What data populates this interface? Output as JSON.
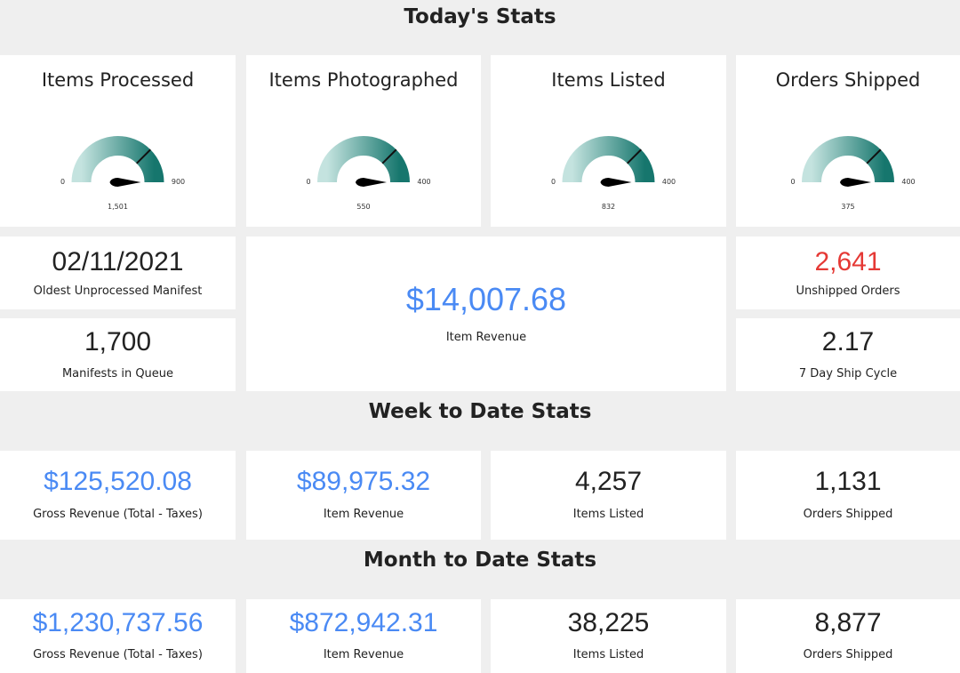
{
  "today": {
    "title": "Today's Stats",
    "gauges": [
      {
        "title": "Items Processed",
        "min": 0,
        "max": 900,
        "value": "1,501"
      },
      {
        "title": "Items Photographed",
        "min": 0,
        "max": 400,
        "value": "550"
      },
      {
        "title": "Items Listed",
        "min": 0,
        "max": 400,
        "value": "832"
      },
      {
        "title": "Orders Shipped",
        "min": 0,
        "max": 400,
        "value": "375"
      }
    ],
    "stats": [
      {
        "value": "02/11/2021",
        "label": "Oldest Unprocessed Manifest"
      },
      {
        "value": "1,700",
        "label": "Manifests in Queue"
      },
      {
        "value": "$14,007.68",
        "label": "Item Revenue"
      },
      {
        "value": "2,641",
        "label": "Unshipped Orders"
      },
      {
        "value": "2.17",
        "label": "7 Day Ship Cycle"
      }
    ]
  },
  "week": {
    "title": "Week to Date Stats",
    "stats": [
      {
        "value": "$125,520.08",
        "label": "Gross Revenue (Total - Taxes)"
      },
      {
        "value": "$89,975.32",
        "label": "Item Revenue"
      },
      {
        "value": "4,257",
        "label": "Items Listed"
      },
      {
        "value": "1,131",
        "label": "Orders Shipped"
      }
    ]
  },
  "month": {
    "title": "Month to Date Stats",
    "stats": [
      {
        "value": "$1,230,737.56",
        "label": "Gross Revenue (Total - Taxes)"
      },
      {
        "value": "$872,942.31",
        "label": "Item Revenue"
      },
      {
        "value": "38,225",
        "label": "Items Listed"
      },
      {
        "value": "8,877",
        "label": "Orders Shipped"
      }
    ]
  }
}
